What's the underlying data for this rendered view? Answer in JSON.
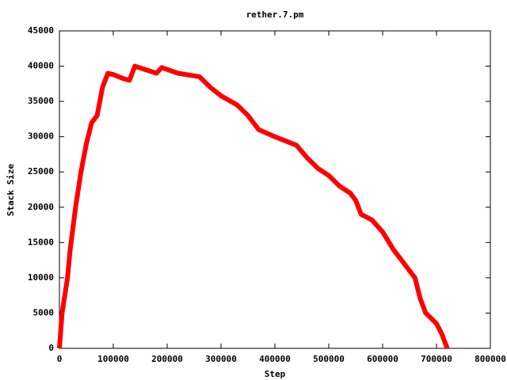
{
  "chart_data": {
    "type": "line",
    "title": "rether.7.pm",
    "x_label": "Step",
    "y_label": "Stack Size",
    "xlim": [
      0,
      800000
    ],
    "ylim": [
      0,
      45000
    ],
    "xticks": [
      0,
      100000,
      200000,
      300000,
      400000,
      500000,
      600000,
      700000,
      800000
    ],
    "yticks": [
      0,
      5000,
      10000,
      15000,
      20000,
      25000,
      30000,
      35000,
      40000,
      45000
    ],
    "x": [
      0,
      5000,
      15000,
      20000,
      30000,
      40000,
      50000,
      60000,
      70000,
      80000,
      90000,
      100000,
      120000,
      130000,
      140000,
      160000,
      180000,
      190000,
      220000,
      260000,
      280000,
      300000,
      330000,
      350000,
      370000,
      400000,
      440000,
      460000,
      480000,
      500000,
      520000,
      540000,
      550000,
      560000,
      580000,
      600000,
      620000,
      640000,
      660000,
      670000,
      680000,
      700000,
      710000,
      720000
    ],
    "series": [
      {
        "color": "#ff0000",
        "values": [
          0,
          5000,
          10000,
          14000,
          20000,
          25000,
          29000,
          32000,
          33000,
          37000,
          39000,
          38800,
          38200,
          38000,
          40000,
          39500,
          39000,
          39800,
          39000,
          38500,
          37000,
          35800,
          34500,
          33000,
          31000,
          30000,
          28800,
          27000,
          25500,
          24500,
          23000,
          22000,
          21000,
          19000,
          18200,
          16500,
          14000,
          12000,
          10000,
          7000,
          5000,
          3500,
          2000,
          0
        ]
      }
    ]
  }
}
